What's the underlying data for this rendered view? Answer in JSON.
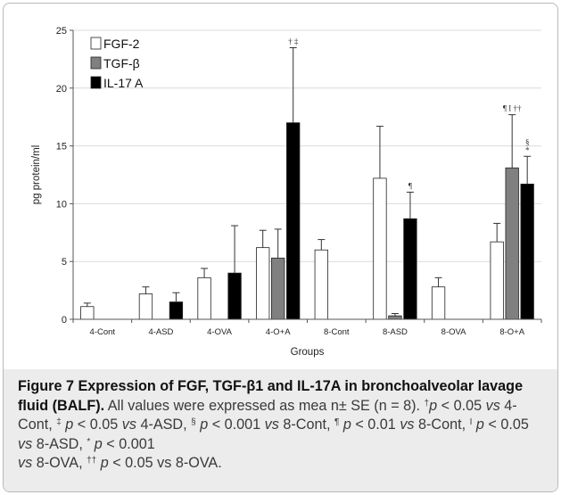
{
  "chart_data": {
    "type": "bar",
    "title": "",
    "xlabel": "Groups",
    "ylabel": "pg protein/ml",
    "ylim": [
      0,
      25
    ],
    "yticks": [
      "0",
      "5",
      "10",
      "15",
      "20",
      "25"
    ],
    "grid": "horizontal",
    "legend_position": "top-left",
    "categories": [
      "4-Cont",
      "4-ASD",
      "4-OVA",
      "4-O+A",
      "8-Cont",
      "8-ASD",
      "8-OVA",
      "8-O+A"
    ],
    "series": [
      {
        "name": "FGF-2",
        "color": "#ffffff",
        "values": [
          1.1,
          2.2,
          3.6,
          6.2,
          6.0,
          12.2,
          2.8,
          6.7
        ],
        "errors": [
          0.3,
          0.6,
          0.8,
          1.5,
          0.9,
          4.5,
          0.8,
          1.6
        ]
      },
      {
        "name": "TGF-β",
        "color": "#808080",
        "values": [
          0,
          0,
          0,
          5.3,
          0,
          0.3,
          0,
          13.1
        ],
        "errors": [
          0,
          0,
          0,
          2.5,
          0,
          0.2,
          0,
          4.6
        ]
      },
      {
        "name": "IL-17 A",
        "color": "#000000",
        "values": [
          0,
          1.5,
          4.0,
          17.0,
          0,
          8.7,
          0,
          11.7
        ],
        "errors": [
          0,
          0.8,
          4.1,
          6.5,
          0,
          2.3,
          0,
          2.4
        ]
      }
    ],
    "annotations": [
      {
        "text": "† ‡",
        "category": "4-O+A",
        "series": "IL-17 A"
      },
      {
        "text": "¶",
        "category": "8-ASD",
        "series": "IL-17 A"
      },
      {
        "text": "¶ I ††",
        "category": "8-O+A",
        "series": "TGF-β"
      },
      {
        "text": "§",
        "category": "8-O+A",
        "series": "IL-17 A",
        "level": 2
      },
      {
        "text": "*",
        "category": "8-O+A",
        "series": "IL-17 A",
        "level": 1
      }
    ]
  },
  "caption": {
    "figure_label": "Figure 7",
    "title": "Expression of FGF, TGF-β1 and IL-17A in bronchoalveolar lavage fluid (BALF).",
    "body_1": "All values were expressed as mea n± SE (n = 8).",
    "sym_dagger": "†",
    "p": "p",
    "vs": "vs",
    "lt005": "< 0.05",
    "lt001": "< 0.01",
    "lt0001": "< 0.001",
    "g_4cont": "4-Cont,",
    "sym_ddagger": "‡",
    "g_4asd": "4-ASD,",
    "sym_section": "§",
    "g_8cont_c": "8-Cont,",
    "sym_pilcrow": "¶",
    "sym_i": "I",
    "g_8asd": "8-ASD,",
    "sym_star": "*",
    "g_8ova_c": "8-OVA,",
    "sym_ddag2": "††",
    "vs_plain": "vs 8-OVA."
  }
}
